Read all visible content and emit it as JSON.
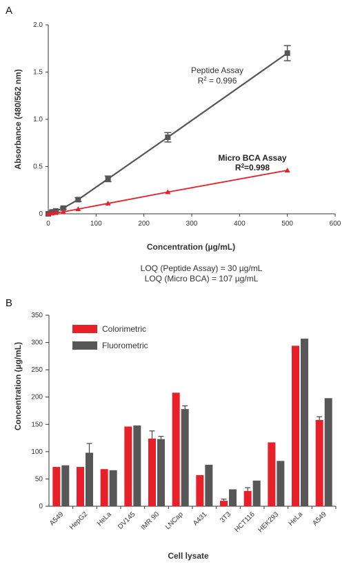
{
  "colors": {
    "peptide": "#555555",
    "microbca": "#e8202a",
    "colorimetric": "#e8202a",
    "fluorometric": "#575757"
  },
  "chart_data": [
    {
      "panel": "A",
      "type": "line",
      "xlabel": "Concentration (µg/mL)",
      "ylabel": "Absorbance (480/562 nm)",
      "xlim": [
        0,
        600
      ],
      "ylim": [
        0,
        2.0
      ],
      "xticks": [
        "0",
        "100",
        "200",
        "300",
        "400",
        "500",
        "600"
      ],
      "yticks": [
        "0",
        "0.5",
        "1.0",
        "1.5",
        "2.0"
      ],
      "series": [
        {
          "name": "Peptide Assay",
          "r2_prefix": "R",
          "r2_sup": "2",
          "r2_value": " = 0.996",
          "marker": "square",
          "x": [
            0,
            7.8,
            15.6,
            31.25,
            62.5,
            125,
            250,
            500
          ],
          "y": [
            0.0,
            0.02,
            0.03,
            0.06,
            0.15,
            0.37,
            0.81,
            1.7
          ],
          "err": [
            0.0,
            0.01,
            0.01,
            0.01,
            0.02,
            0.03,
            0.05,
            0.08
          ]
        },
        {
          "name": "Micro BCA Assay",
          "r2_prefix": "R",
          "r2_sup": "2",
          "r2_value": "=0.998",
          "marker": "triangle",
          "x": [
            0,
            7.8,
            15.6,
            31.25,
            62.5,
            125,
            250,
            500
          ],
          "y": [
            0.0,
            0.005,
            0.01,
            0.02,
            0.05,
            0.11,
            0.23,
            0.46
          ],
          "err": [
            0,
            0,
            0,
            0,
            0,
            0,
            0,
            0
          ]
        }
      ],
      "notes": [
        "LOQ (Peptide Assay) = 30 µg/mL",
        "LOQ (Micro BCA) = 107 µg/mL"
      ]
    },
    {
      "panel": "B",
      "type": "bar",
      "xlabel": "Cell lysate",
      "ylabel": "Concentration (µg/mL)",
      "ylim": [
        0,
        350
      ],
      "yticks": [
        "0",
        "50",
        "100",
        "150",
        "200",
        "250",
        "300",
        "350"
      ],
      "legend_position": "top-left",
      "categories": [
        "A549",
        "HepG2",
        "HeLa",
        "DV145",
        "IMR 90",
        "LNCap",
        "A431",
        "3T3",
        "HCT116",
        "HEK293",
        "HeLa",
        "A549"
      ],
      "series": [
        {
          "name": "Colorimetric",
          "values": [
            72,
            72,
            68,
            146,
            124,
            208,
            57,
            10,
            28,
            117,
            294,
            158
          ],
          "err": [
            0,
            0,
            0,
            0,
            14,
            0,
            0,
            3,
            6,
            0,
            0,
            6
          ]
        },
        {
          "name": "Fluorometric",
          "values": [
            75,
            98,
            66,
            148,
            123,
            178,
            76,
            31,
            47,
            83,
            307,
            198
          ],
          "err": [
            0,
            17,
            0,
            0,
            5,
            6,
            0,
            0,
            0,
            0,
            0,
            0
          ]
        }
      ]
    }
  ]
}
